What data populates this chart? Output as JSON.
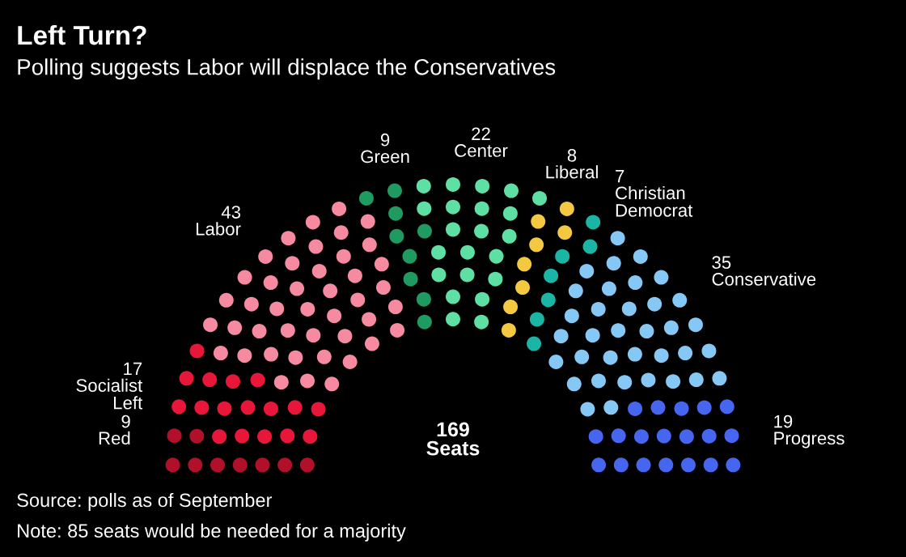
{
  "chart_data": {
    "type": "other",
    "title": "Left Turn?",
    "subtitle": "Polling suggests Labor will displace the Conservatives",
    "categories": [
      "Red",
      "Socialist\nLeft",
      "Labor",
      "Green",
      "Center",
      "Liberal",
      "Christian\nDemocrat",
      "Conservative",
      "Progress"
    ],
    "values": [
      9,
      17,
      43,
      9,
      22,
      8,
      7,
      35,
      19
    ],
    "colors": [
      "#b0102a",
      "#e8173a",
      "#f58aa0",
      "#1f9a60",
      "#5ee0a4",
      "#f5c842",
      "#1bb5a6",
      "#86c8f5",
      "#4666f0"
    ],
    "data_labels": true,
    "annotations": [
      "169\nSeats",
      "Source: polls as of September",
      "Note: 85 seats would be needed for a majority"
    ]
  }
}
